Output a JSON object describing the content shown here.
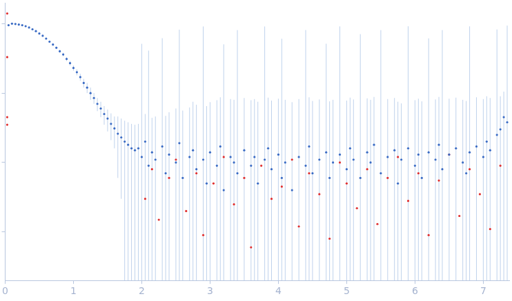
{
  "chart_data": {
    "type": "scatter",
    "log": "y",
    "grid": false,
    "tick_labels": "x",
    "xlim": [
      0,
      7.38
    ],
    "xticks": [
      0,
      1,
      2,
      3,
      4,
      5,
      6,
      7
    ],
    "ylim": [
      0.0002,
      2
    ],
    "yticks": [
      0.001,
      0.01,
      0.1,
      1
    ],
    "series": [
      {
        "color": "#3a6bc4",
        "marker": "circle",
        "x": [
          0.05,
          0.1,
          0.15,
          0.2,
          0.25,
          0.3,
          0.35,
          0.4,
          0.45,
          0.5,
          0.55,
          0.6,
          0.65,
          0.7,
          0.75,
          0.8,
          0.85,
          0.9,
          0.95,
          1.0,
          1.05,
          1.1,
          1.15,
          1.2,
          1.25,
          1.3,
          1.35,
          1.4,
          1.45,
          1.5,
          1.55,
          1.6,
          1.65,
          1.7,
          1.75,
          1.8,
          1.85,
          1.9,
          1.95,
          2.0,
          2.05,
          2.1,
          2.15,
          2.2,
          2.3,
          2.35,
          2.4,
          2.5,
          2.55,
          2.6,
          2.7,
          2.75,
          2.8,
          2.9,
          2.95,
          3.0,
          3.1,
          3.15,
          3.2,
          3.3,
          3.35,
          3.4,
          3.5,
          3.6,
          3.65,
          3.7,
          3.8,
          3.85,
          3.9,
          4.0,
          4.05,
          4.1,
          4.2,
          4.3,
          4.4,
          4.45,
          4.5,
          4.6,
          4.7,
          4.75,
          4.8,
          4.9,
          5.0,
          5.05,
          5.1,
          5.2,
          5.3,
          5.35,
          5.4,
          5.5,
          5.6,
          5.7,
          5.75,
          5.8,
          5.9,
          6.0,
          6.05,
          6.1,
          6.2,
          6.3,
          6.35,
          6.4,
          6.5,
          6.6,
          6.7,
          6.75,
          6.8,
          6.9,
          7.0,
          7.05,
          7.1,
          7.2,
          7.25,
          7.3,
          7.35
        ],
        "values": [
          0.95,
          1.0,
          0.99,
          0.97,
          0.95,
          0.92,
          0.88,
          0.83,
          0.78,
          0.72,
          0.67,
          0.61,
          0.55,
          0.5,
          0.45,
          0.4,
          0.36,
          0.31,
          0.27,
          0.23,
          0.2,
          0.17,
          0.14,
          0.12,
          0.1,
          0.085,
          0.07,
          0.06,
          0.05,
          0.043,
          0.036,
          0.031,
          0.026,
          0.023,
          0.02,
          0.018,
          0.016,
          0.015,
          0.016,
          0.012,
          0.02,
          0.009,
          0.014,
          0.011,
          0.017,
          0.007,
          0.013,
          0.01,
          0.019,
          0.006,
          0.012,
          0.015,
          0.008,
          0.011,
          0.005,
          0.014,
          0.009,
          0.017,
          0.004,
          0.012,
          0.01,
          0.007,
          0.015,
          0.009,
          0.012,
          0.005,
          0.011,
          0.016,
          0.008,
          0.013,
          0.006,
          0.01,
          0.004,
          0.012,
          0.009,
          0.017,
          0.007,
          0.011,
          0.014,
          0.006,
          0.01,
          0.013,
          0.008,
          0.016,
          0.011,
          0.006,
          0.014,
          0.01,
          0.018,
          0.007,
          0.012,
          0.015,
          0.005,
          0.011,
          0.016,
          0.009,
          0.013,
          0.006,
          0.014,
          0.011,
          0.018,
          0.008,
          0.013,
          0.016,
          0.01,
          0.007,
          0.014,
          0.017,
          0.012,
          0.02,
          0.015,
          0.025,
          0.03,
          0.045,
          0.038
        ],
        "errors": [
          0.03,
          0.02,
          0.02,
          0.02,
          0.02,
          0.02,
          0.02,
          0.02,
          0.02,
          0.02,
          0.02,
          0.02,
          0.02,
          0.02,
          0.02,
          0.02,
          0.02,
          0.02,
          0.02,
          0.02,
          0.02,
          0.02,
          0.02,
          0.02,
          0.02,
          0.015,
          0.015,
          0.015,
          0.015,
          0.015,
          0.015,
          0.015,
          0.02,
          0.02,
          0.02,
          0.02,
          0.02,
          0.02,
          0.02,
          0.5,
          0.03,
          0.4,
          0.03,
          0.035,
          0.6,
          0.04,
          0.04,
          0.05,
          0.8,
          0.05,
          0.05,
          0.06,
          0.06,
          0.9,
          0.06,
          0.06,
          0.07,
          0.07,
          0.5,
          0.07,
          0.07,
          0.8,
          0.07,
          0.07,
          0.07,
          0.07,
          0.9,
          0.07,
          0.07,
          0.07,
          0.6,
          0.07,
          0.07,
          0.07,
          0.8,
          0.07,
          0.07,
          0.07,
          0.5,
          0.07,
          0.07,
          0.9,
          0.07,
          0.07,
          0.07,
          0.7,
          0.07,
          0.07,
          0.07,
          0.8,
          0.07,
          0.07,
          0.07,
          0.06,
          0.9,
          0.07,
          0.07,
          0.07,
          0.6,
          0.07,
          0.07,
          0.8,
          0.07,
          0.07,
          0.07,
          0.07,
          0.9,
          0.07,
          0.07,
          0.07,
          0.07,
          0.8,
          0.06,
          0.06,
          0.9
        ]
      },
      {
        "color": "#e03030",
        "marker": "circle",
        "x": [
          0.03,
          0.03,
          0.03,
          0.03,
          2.05,
          2.15,
          2.25,
          2.4,
          2.5,
          2.65,
          2.8,
          2.9,
          3.05,
          3.2,
          3.35,
          3.5,
          3.6,
          3.75,
          3.9,
          4.05,
          4.2,
          4.3,
          4.45,
          4.6,
          4.75,
          4.9,
          5.0,
          5.15,
          5.3,
          5.45,
          5.6,
          5.75,
          5.9,
          6.05,
          6.2,
          6.35,
          6.5,
          6.65,
          6.8,
          6.95,
          7.1,
          7.25
        ],
        "values": [
          1.4,
          0.33,
          0.045,
          0.035,
          0.003,
          0.008,
          0.0015,
          0.006,
          0.011,
          0.002,
          0.007,
          0.0009,
          0.005,
          0.012,
          0.0025,
          0.006,
          0.0006,
          0.009,
          0.003,
          0.0045,
          0.011,
          0.0012,
          0.007,
          0.0035,
          0.0008,
          0.01,
          0.005,
          0.0022,
          0.008,
          0.0013,
          0.006,
          0.012,
          0.0028,
          0.007,
          0.0009,
          0.0055,
          0.013,
          0.0017,
          0.008,
          0.0035,
          0.0011,
          0.009
        ]
      }
    ]
  }
}
